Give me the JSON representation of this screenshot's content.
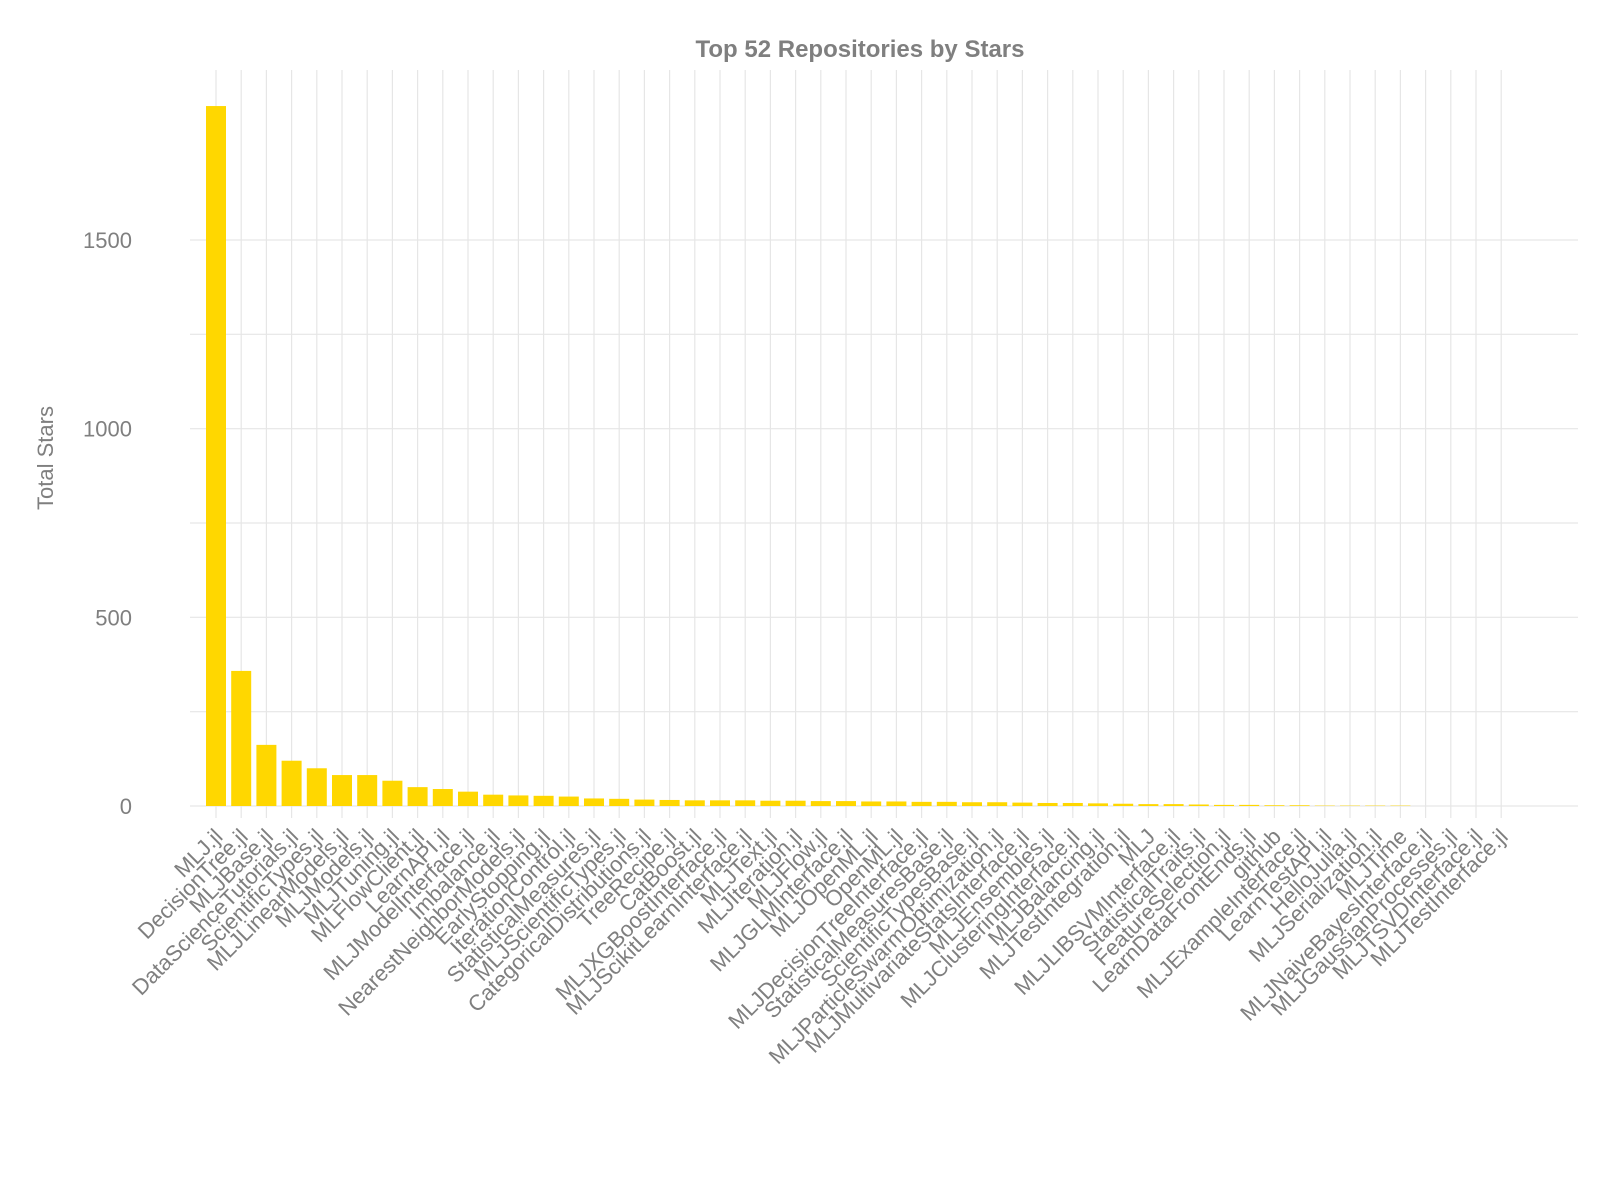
{
  "colors": {
    "bar": "#ffd700",
    "text": "#7f7f7f",
    "grid": "#e6e6e6"
  },
  "chart_data": {
    "type": "bar",
    "title": "Top 52 Repositories by Stars",
    "xlabel": "",
    "ylabel": "Total Stars",
    "ylim": [
      -60,
      1900
    ],
    "yticks": [
      0,
      500,
      1000,
      1500
    ],
    "grid": true,
    "legend": "none",
    "categories": [
      "MLJ.jl",
      "DecisionTree.jl",
      "MLJBase.jl",
      "DataScienceTutorials.jl",
      "ScientificTypes.jl",
      "MLJLinearModels.jl",
      "MLJModels.jl",
      "MLJTuning.jl",
      "MLFlowClient.jl",
      "LearnAPI.jl",
      "MLJModelInterface.jl",
      "Imbalance.jl",
      "NearestNeighborModels.jl",
      "EarlyStopping.jl",
      "IterationControl.jl",
      "StatisticalMeasures.jl",
      "MLJScientificTypes.jl",
      "CategoricalDistributions.jl",
      "TreeRecipe.jl",
      "CatBoost.jl",
      "MLJXGBoostInterface.jl",
      "MLJScikitLearnInterface.jl",
      "MLJText.jl",
      "MLJIteration.jl",
      "MLJFlow.jl",
      "MLJGLMInterface.jl",
      "MLJOpenML.jl",
      "OpenML.jl",
      "MLJDecisionTreeInterface.jl",
      "StatisticalMeasuresBase.jl",
      "ScientificTypesBase.jl",
      "MLJParticleSwarmOptimization.jl",
      "MLJMultivariateStatsInterface.jl",
      "MLJEnsembles.jl",
      "MLJClusteringInterface.jl",
      "MLJBalancing.jl",
      "MLJTestIntegration.jl",
      "MLJ",
      "MLJLIBSVMInterface.jl",
      "StatisticalTraits.jl",
      "FeatureSelection.jl",
      "LearnDataFrontEnds.jl",
      "github",
      "MLJExampleInterface.jl",
      "LearnTestAPI.jl",
      "HelloJulia.jl",
      "MLJSerialization.jl",
      "MLJTime",
      "MLJNaiveBayesInterface.jl",
      "MLJGaussianProcesses.jl",
      "MLJTSVDInterface.jl",
      "MLJTestInterface.jl"
    ],
    "values": [
      1855,
      358,
      162,
      120,
      100,
      82,
      82,
      67,
      50,
      45,
      38,
      30,
      28,
      27,
      25,
      20,
      19,
      17,
      16,
      15,
      15,
      15,
      14,
      14,
      13,
      13,
      12,
      12,
      11,
      11,
      10,
      10,
      9,
      8,
      8,
      7,
      6,
      5,
      5,
      4,
      3,
      3,
      2,
      2,
      1,
      1,
      1,
      1,
      0,
      0,
      0,
      0
    ]
  }
}
